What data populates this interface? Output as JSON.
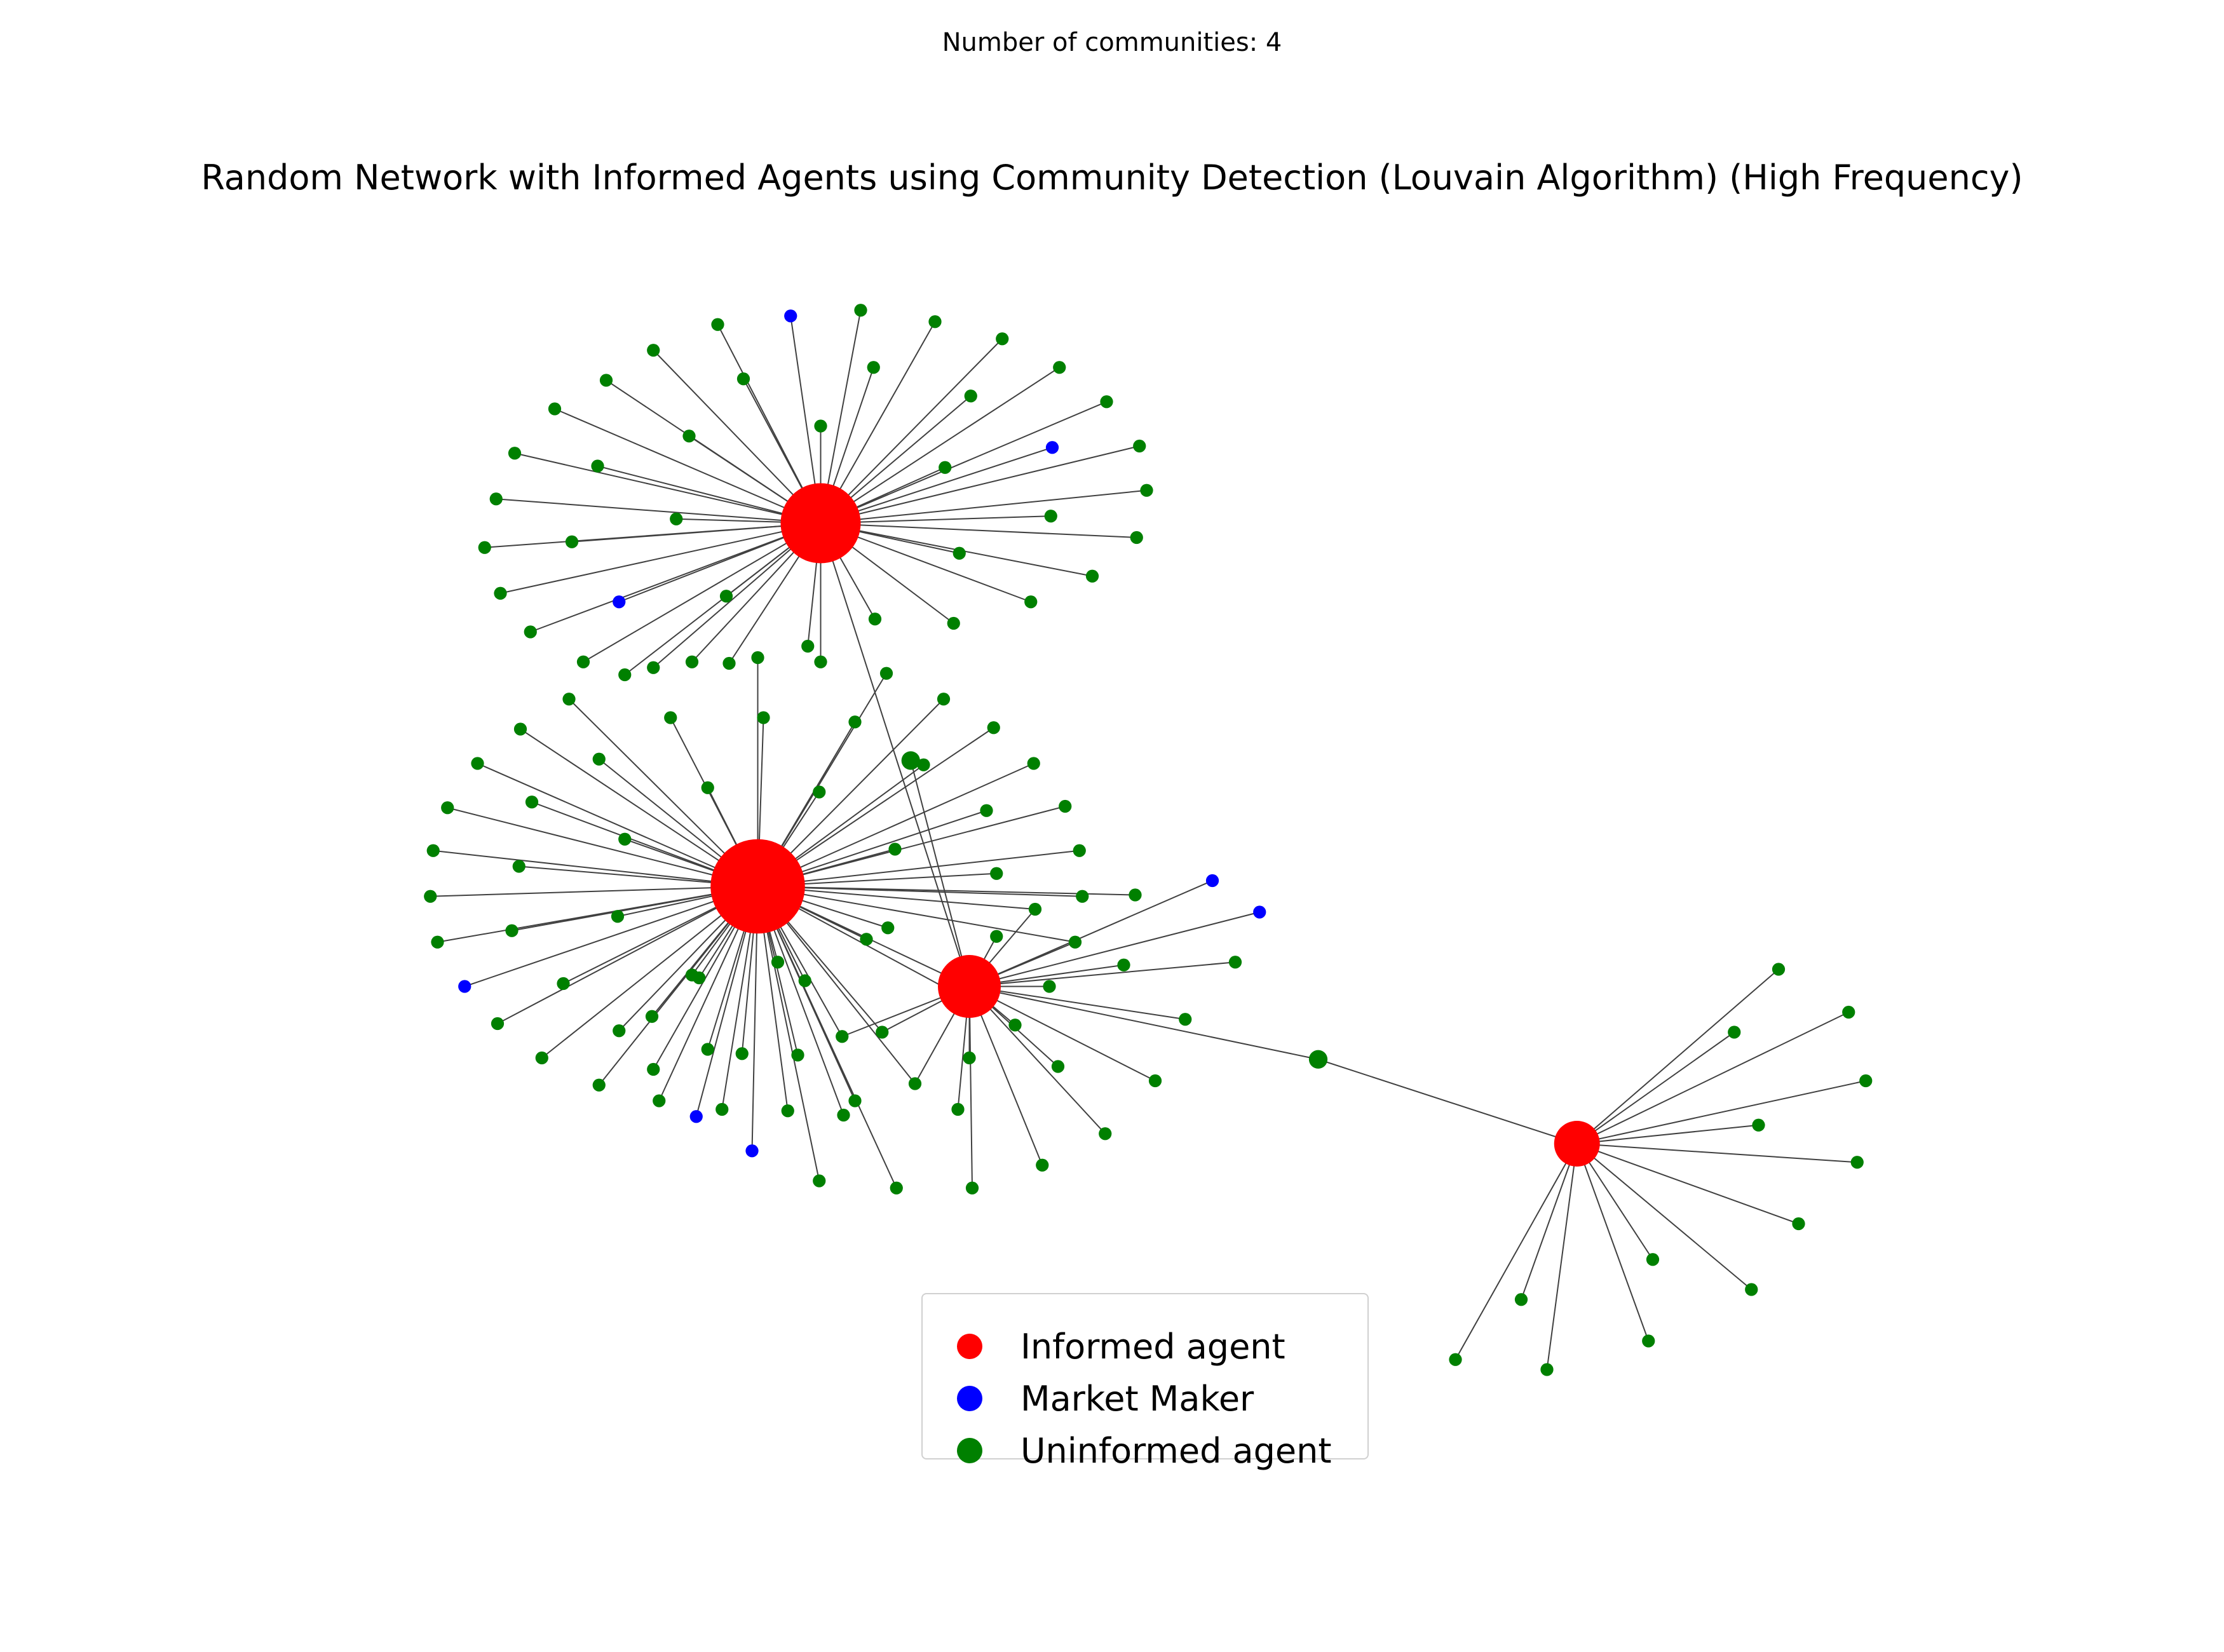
{
  "suptitle": "Number of communities: 4",
  "title": "Random Network with Informed Agents using Community Detection (Louvain Algorithm) (High Frequency)",
  "legend": [
    {
      "label": "Informed agent",
      "color": "#ff0000"
    },
    {
      "label": "Market Maker",
      "color": "#0000ff"
    },
    {
      "label": "Uninformed agent",
      "color": "#008000"
    }
  ],
  "colors": {
    "informed": "#ff0000",
    "market_maker": "#0000ff",
    "uninformed": "#008000",
    "edge": "#404040"
  }
}
